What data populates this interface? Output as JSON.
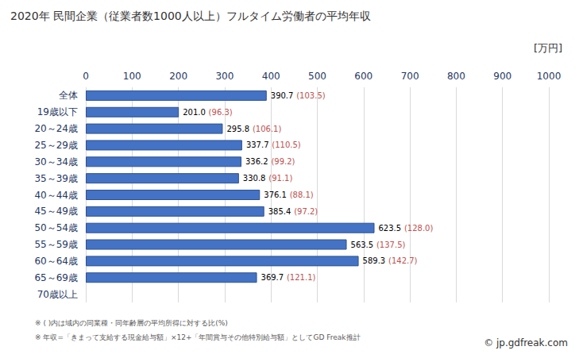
{
  "chart_data": {
    "type": "bar",
    "orientation": "horizontal",
    "title": "2020年 民間企業（従業者数1000人以上）フルタイム労働者の平均年収",
    "unit": "[万円]",
    "categories": [
      "全体",
      "19歳以下",
      "20～24歳",
      "25～29歳",
      "30～34歳",
      "35～39歳",
      "40～44歳",
      "45～49歳",
      "50～54歳",
      "55～59歳",
      "60～64歳",
      "65～69歳",
      "70歳以上"
    ],
    "values": [
      390.7,
      201.0,
      295.8,
      337.7,
      336.2,
      330.8,
      376.1,
      385.4,
      623.5,
      563.5,
      589.3,
      369.7,
      null
    ],
    "value_labels": [
      "390.7",
      "201.0",
      "295.8",
      "337.7",
      "336.2",
      "330.8",
      "376.1",
      "385.4",
      "623.5",
      "563.5",
      "589.3",
      "369.7",
      null
    ],
    "ratios": [
      103.5,
      96.3,
      106.1,
      110.5,
      99.2,
      91.1,
      88.1,
      97.2,
      128.0,
      137.5,
      142.7,
      121.1,
      null
    ],
    "ratio_labels": [
      "(103.5)",
      "(96.3)",
      "(106.1)",
      "(110.5)",
      "(99.2)",
      "(91.1)",
      "(88.1)",
      "(97.2)",
      "(128.0)",
      "(137.5)",
      "(142.7)",
      "(121.1)",
      null
    ],
    "color": "#4472c4",
    "xlim": [
      0,
      1000
    ],
    "xticks": [
      0,
      100,
      200,
      300,
      400,
      500,
      600,
      700,
      800,
      900,
      1000
    ],
    "grid": true,
    "data_labels": true,
    "notes": [
      "※ ( )内は域内の同業種・同年齢層の平均所得に対する比(%)",
      "※ 年収=「きまって支給する現金給与額」×12+「年間賞与その他特別給与額」としてGD Freak推計"
    ],
    "source": "© jp.gdfreak.com"
  }
}
